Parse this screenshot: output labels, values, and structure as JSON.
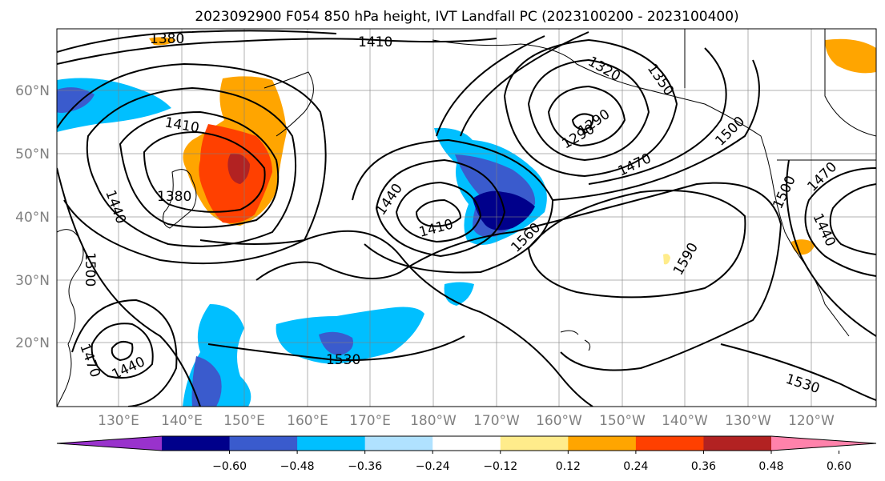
{
  "title": "2023092900 F054 850 hPa height, IVT Landfall PC (2023100200 - 2023100400)",
  "lat_labels": [
    "60°N",
    "50°N",
    "40°N",
    "30°N",
    "20°N"
  ],
  "lon_labels": [
    "130°E",
    "140°E",
    "150°E",
    "160°E",
    "170°E",
    "180°W",
    "170°W",
    "160°W",
    "150°W",
    "140°W",
    "130°W",
    "120°W"
  ],
  "colorbar": {
    "ticks": [
      "−0.60",
      "−0.48",
      "−0.36",
      "−0.24",
      "−0.12",
      "0.12",
      "0.24",
      "0.36",
      "0.48",
      "0.60"
    ],
    "colors": [
      "#9932cc",
      "#00008b",
      "#3a5bcd",
      "#00bfff",
      "#b0e2ff",
      "#ffffff",
      "#ffec8b",
      "#ffa500",
      "#ff4000",
      "#b22222",
      "#ff82ab"
    ]
  },
  "contour_labels": [
    "1380",
    "1410",
    "1320",
    "1350",
    "1410",
    "1380",
    "1440",
    "1440",
    "1410",
    "1290",
    "1290",
    "1470",
    "1500",
    "1470",
    "1500",
    "1440",
    "1560",
    "1590",
    "1530",
    "1530",
    "1440",
    "1470",
    "1500"
  ],
  "shading_colors": {
    "dark_blue": "#00008b",
    "mid_blue": "#3a5bcd",
    "sky_blue": "#00bfff",
    "light_orange": "#ffa500",
    "red_orange": "#ff4000",
    "dark_red": "#b22222",
    "yellow": "#ffec8b"
  }
}
